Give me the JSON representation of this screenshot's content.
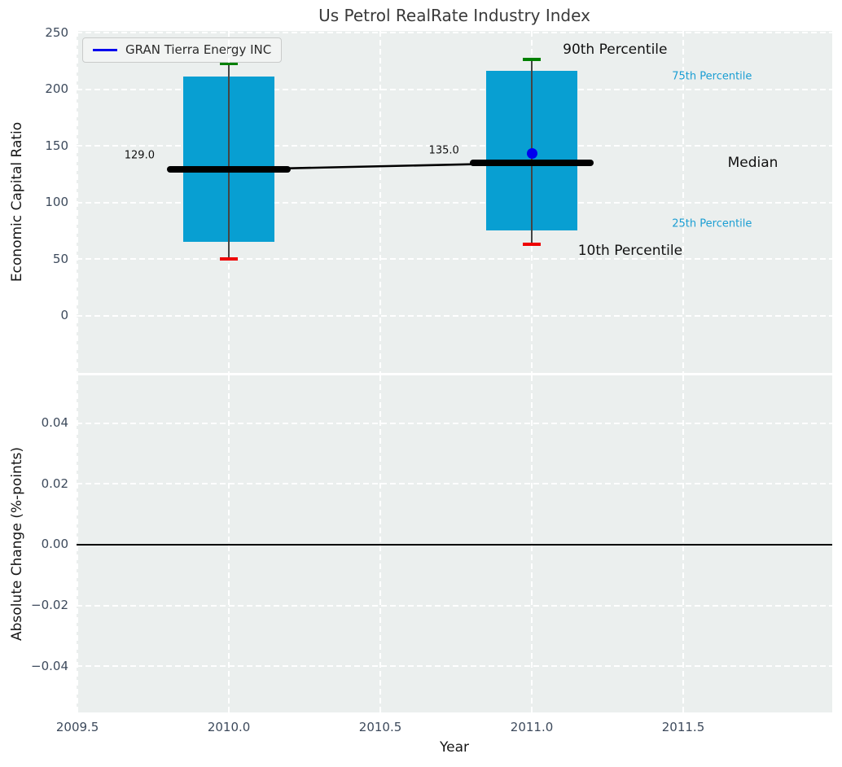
{
  "chart_data": {
    "type": "boxplot",
    "title": "Us Petrol RealRate Industry Index",
    "x": {
      "label": "Year",
      "tick_values": [
        2009.5,
        2010.0,
        2010.5,
        2011.0,
        2011.5
      ],
      "tick_labels": [
        "2009.5",
        "2010.0",
        "2010.5",
        "2011.0",
        "2011.5"
      ],
      "lim": [
        2009.497,
        2011.992
      ]
    },
    "colors": {
      "figure_bg": "#ffffff",
      "axes_bg": "#ebefee",
      "grid": "#ffffff",
      "bar": "#089fd2",
      "p90_cap": "#008000",
      "p10_cap": "#ee0000",
      "whisker": "#444444",
      "median": "#000000",
      "company": "#0000ee",
      "cyan_label": "#1b9ed3",
      "tick_text": "#3d4a5c",
      "zero_line": "#000000"
    },
    "bar_width_years": 0.3,
    "median_width_years": 0.41,
    "cap_width_years": 0.057,
    "panels": [
      {
        "ylabel": "Economic Capital Ratio",
        "ylim": [
          -50.5,
          251.5
        ],
        "tick_values": [
          250,
          200,
          150,
          100,
          50,
          0
        ],
        "tick_labels": [
          "250",
          "200",
          "150",
          "100",
          "50",
          "0"
        ],
        "grid": true,
        "legend": {
          "label": "GRAN Tierra Energy INC"
        },
        "groups": [
          {
            "x": 2010,
            "p10": 50,
            "p25": 65,
            "median": 129,
            "p75": 211.5,
            "p90": 222.5
          },
          {
            "x": 2011,
            "p10": 63,
            "p25": 75.5,
            "median": 135,
            "p75": 216,
            "p90": 226.5
          }
        ],
        "median_trend": [
          [
            2010,
            129
          ],
          [
            2011,
            135
          ]
        ],
        "company_point": {
          "x": 2011,
          "y": 143.5
        },
        "annotations": [
          {
            "text": "129.0",
            "x": 2009.705,
            "y": 141.0,
            "size": 13,
            "color": "#111111"
          },
          {
            "text": "135.0",
            "x": 2010.71,
            "y": 145.0,
            "size": 13,
            "color": "#111111"
          }
        ],
        "labels": [
          {
            "text": "90th Percentile",
            "x": 2011.275,
            "y": 234.0,
            "size": 17,
            "color": "#111111"
          },
          {
            "text": "75th Percentile",
            "x": 2011.595,
            "y": 210.5,
            "size": 13,
            "color": "#1b9ed3"
          },
          {
            "text": "Median",
            "x": 2011.73,
            "y": 134.5,
            "size": 17,
            "color": "#111111"
          },
          {
            "text": "25th Percentile",
            "x": 2011.595,
            "y": 80.5,
            "size": 13,
            "color": "#1b9ed3"
          },
          {
            "text": "10th Percentile",
            "x": 2011.325,
            "y": 56.5,
            "size": 17,
            "color": "#111111"
          }
        ]
      },
      {
        "ylabel": "Absolute Change (%-points)",
        "ylim": [
          -0.0552,
          0.0557
        ],
        "tick_values": [
          0.04,
          0.02,
          0.0,
          -0.02,
          -0.04
        ],
        "tick_labels": [
          "0.04",
          "0.02",
          "0.00",
          "−0.02",
          "−0.04"
        ],
        "grid": true,
        "zero_line": 0.0
      }
    ]
  }
}
